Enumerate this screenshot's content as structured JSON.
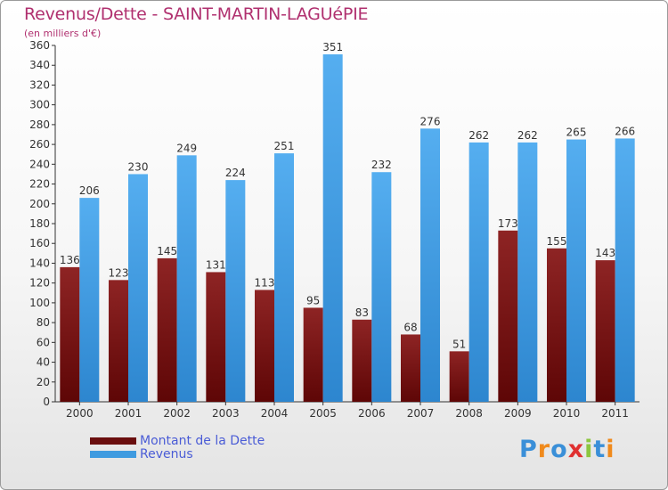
{
  "chart_data": {
    "type": "bar",
    "title": "Revenus/Dette - SAINT-MARTIN-LAGUéPIE",
    "subtitle": "(en milliers d'€)",
    "categories": [
      "2000",
      "2001",
      "2002",
      "2003",
      "2004",
      "2005",
      "2006",
      "2007",
      "2008",
      "2009",
      "2010",
      "2011"
    ],
    "series": [
      {
        "name": "Montant de la Dette",
        "color": "#7a1515",
        "values": [
          136,
          123,
          145,
          131,
          113,
          95,
          83,
          68,
          51,
          173,
          155,
          143
        ]
      },
      {
        "name": "Revenus",
        "color": "#3f9be0",
        "values": [
          206,
          230,
          249,
          224,
          251,
          351,
          232,
          276,
          262,
          262,
          265,
          266
        ]
      }
    ],
    "ylim": [
      0,
      360
    ],
    "ytick_step": 20,
    "grid": false,
    "legend_position": "bottom-left"
  },
  "logo": {
    "text": "Proxiti",
    "colors": [
      "#3a8fd8",
      "#f08a1c",
      "#3a8fd8",
      "#e03030",
      "#8cc63f",
      "#3a8fd8",
      "#f08a1c"
    ]
  }
}
